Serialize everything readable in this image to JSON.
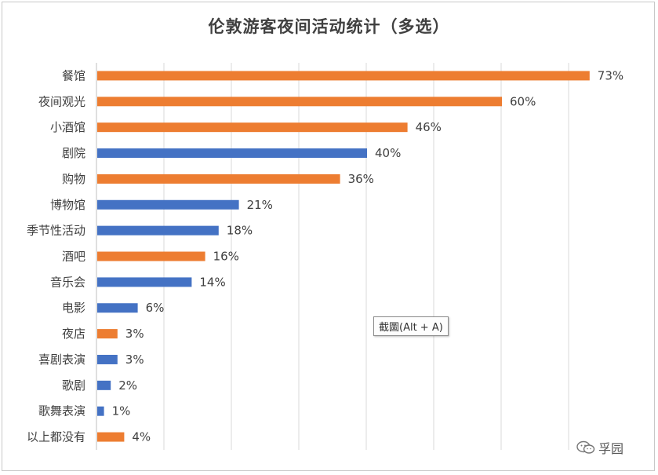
{
  "chart_data": {
    "type": "bar",
    "orientation": "horizontal",
    "title": "伦敦游客夜间活动统计（多选）",
    "categories": [
      "餐馆",
      "夜间观光",
      "小酒馆",
      "剧院",
      "购物",
      "博物馆",
      "季节性活动",
      "酒吧",
      "音乐会",
      "电影",
      "夜店",
      "喜剧表演",
      "歌剧",
      "歌舞表演",
      "以上都没有"
    ],
    "values": [
      73,
      60,
      46,
      40,
      36,
      21,
      18,
      16,
      14,
      6,
      3,
      3,
      2,
      1,
      4
    ],
    "value_labels": [
      "73%",
      "60%",
      "46%",
      "40%",
      "36%",
      "21%",
      "18%",
      "16%",
      "14%",
      "6%",
      "3%",
      "3%",
      "2%",
      "1%",
      "4%"
    ],
    "bar_colors": [
      "#ED7D31",
      "#ED7D31",
      "#ED7D31",
      "#4472C4",
      "#ED7D31",
      "#4472C4",
      "#4472C4",
      "#ED7D31",
      "#4472C4",
      "#4472C4",
      "#ED7D31",
      "#4472C4",
      "#4472C4",
      "#4472C4",
      "#ED7D31"
    ],
    "xlim": [
      0,
      80
    ],
    "grid": true,
    "xlabel": "",
    "ylabel": ""
  },
  "tooltip": {
    "text": "截圖(Alt + A)"
  },
  "watermark": {
    "text": "孚园",
    "icon": "wechat-icon"
  }
}
